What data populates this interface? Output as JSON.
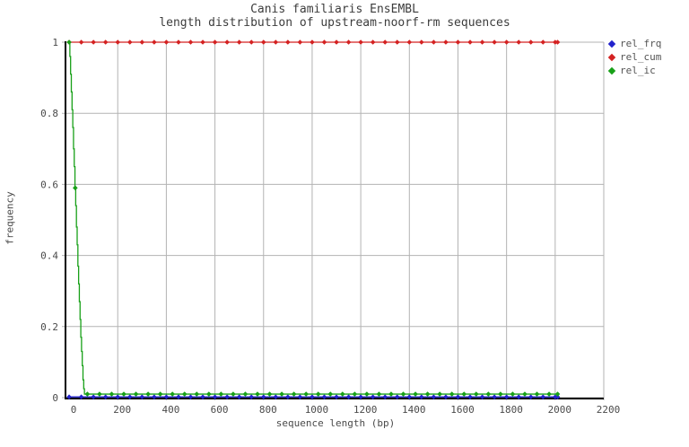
{
  "chart_data": {
    "type": "line",
    "title": "Canis familiaris EnsEMBL",
    "subtitle": "length distribution of upstream-noorf-rm sequences",
    "xlabel": "sequence length (bp)",
    "ylabel": "frequency",
    "xlim": [
      -15,
      2200
    ],
    "ylim": [
      0,
      1
    ],
    "xticks": [
      0,
      200,
      400,
      600,
      800,
      1000,
      1200,
      1400,
      1600,
      1800,
      2000,
      2200
    ],
    "yticks": [
      0,
      0.2,
      0.4,
      0.6,
      0.8,
      1
    ],
    "ytick_labels": [
      "0",
      "0.2",
      "0.4",
      "0.6",
      "0.8",
      "1"
    ],
    "grid": true,
    "legend_position": "right-outside",
    "colors": {
      "background": "#ffffff",
      "grid": "#b3b3b3",
      "axis": "#000000",
      "tick_text": "#4a4a4a",
      "title_text": "#3c3c3c"
    },
    "legend": {
      "entries": [
        {
          "label": "rel_frq",
          "color": "#2222cc"
        },
        {
          "label": "rel_cum",
          "color": "#d42222"
        },
        {
          "label": "rel_ic",
          "color": "#18a018"
        }
      ]
    },
    "series": [
      {
        "name": "rel_frq",
        "color": "#2222cc",
        "shape": "constant",
        "value": 0.002,
        "x_start": 0,
        "x_end": 2010,
        "marker_start": 0,
        "marker_interval": 50
      },
      {
        "name": "rel_cum",
        "color": "#d42222",
        "shape": "constant",
        "value": 1.0,
        "x_start": 0,
        "x_end": 2010,
        "marker_start": 0,
        "marker_interval": 50
      },
      {
        "name": "rel_ic",
        "color": "#18a018",
        "shape": "step-descent",
        "descent": [
          [
            0,
            1.0
          ],
          [
            3,
            0.96
          ],
          [
            6,
            0.91
          ],
          [
            9,
            0.86
          ],
          [
            12,
            0.81
          ],
          [
            15,
            0.76
          ],
          [
            18,
            0.7
          ],
          [
            21,
            0.65
          ],
          [
            24,
            0.59
          ],
          [
            27,
            0.54
          ],
          [
            30,
            0.48
          ],
          [
            33,
            0.43
          ],
          [
            36,
            0.37
          ],
          [
            39,
            0.32
          ],
          [
            42,
            0.27
          ],
          [
            45,
            0.22
          ],
          [
            48,
            0.17
          ],
          [
            51,
            0.13
          ],
          [
            54,
            0.09
          ],
          [
            57,
            0.05
          ],
          [
            60,
            0.025
          ],
          [
            63,
            0.01
          ]
        ],
        "tail_value": 0.01,
        "x_end": 2010,
        "marker_start": 25,
        "marker_interval": 50
      }
    ]
  }
}
